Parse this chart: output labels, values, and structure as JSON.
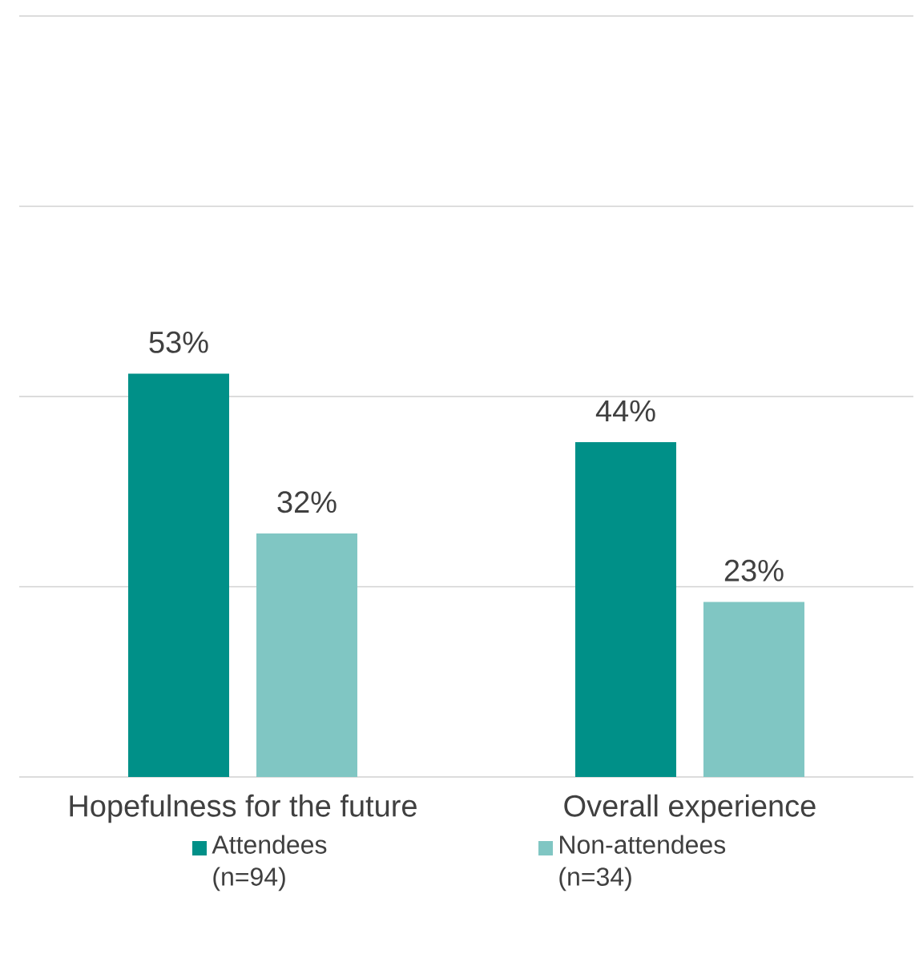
{
  "chart_data": {
    "type": "bar",
    "categories": [
      "Hopefulness for the future",
      "Overall experience"
    ],
    "series": [
      {
        "name": "Attendees (n=94)",
        "color": "#009088",
        "values": [
          53,
          44
        ],
        "value_labels": [
          "53%",
          "44%"
        ]
      },
      {
        "name": "Non-attendees (n=34)",
        "color": "#80c6c3",
        "values": [
          32,
          23
        ],
        "value_labels": [
          "32%",
          "23%"
        ]
      }
    ],
    "ylim": [
      0,
      100
    ],
    "yticks": [
      {
        "value": 0,
        "label": null
      },
      {
        "value": 25,
        "label": null
      },
      {
        "value": 50,
        "label": null
      },
      {
        "value": 75,
        "label": null
      },
      {
        "value": 100,
        "label": null
      }
    ],
    "tick_labels": "x",
    "grid": "y",
    "legend": "bottom"
  }
}
